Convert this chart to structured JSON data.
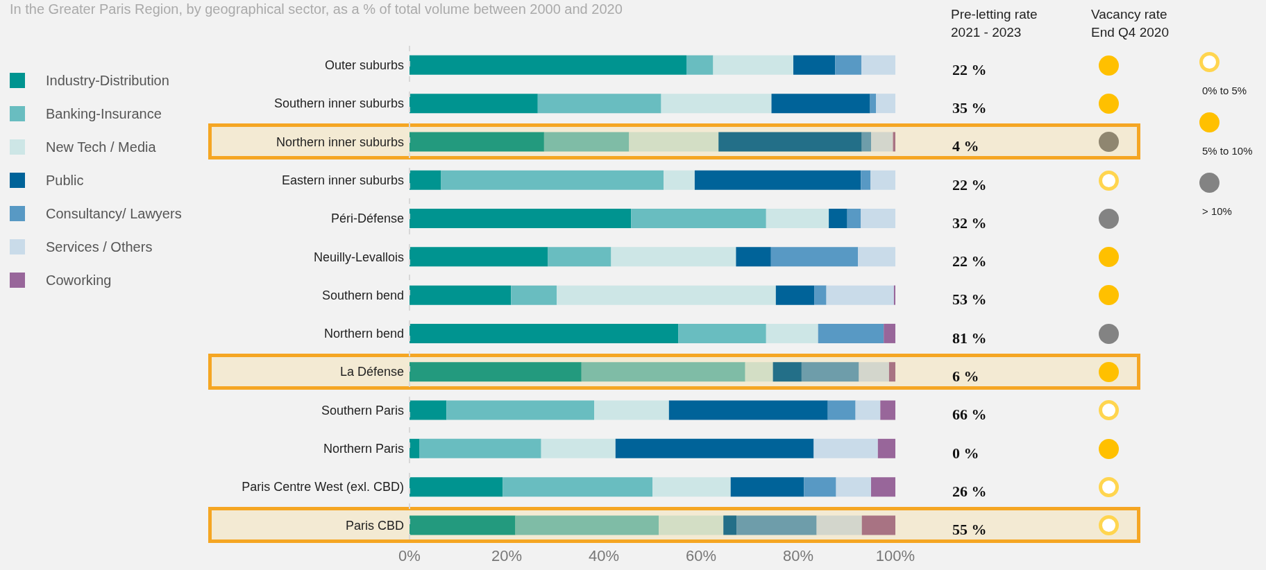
{
  "chart_data": [
    {
      "type": "bar",
      "orientation": "horizontal",
      "stacked": true,
      "subtitle": "In the Greater Paris Region, by geographical sector, as a % of total volume between 2000 and 2020",
      "categories": [
        "Outer suburbs",
        "Southern inner suburbs",
        "Northern inner suburbs",
        "Eastern inner suburbs",
        "Péri-Défense",
        "Neuilly-Levallois",
        "Southern bend",
        "Northern bend",
        "La Défense",
        "Southern Paris",
        "Northern Paris",
        "Paris Centre West (exl. CBD)",
        "Paris CBD"
      ],
      "series": [
        {
          "name": "Industry-Distribution",
          "color": "#009490",
          "colors": [
            "#009490",
            "#009490",
            "#239a7e",
            "#009490",
            "#009490",
            "#009490",
            "#009490",
            "#009490",
            "#239a7e",
            "#009490",
            "#009490",
            "#009490",
            "#239a7e"
          ],
          "values": [
            57,
            26.4,
            27.7,
            6.5,
            45.6,
            28.5,
            20.9,
            55.3,
            35.4,
            7.6,
            2,
            19.2,
            21.8
          ]
        },
        {
          "name": "Banking-Insurance",
          "color": "#69bdc0",
          "colors": [
            "#69bdc0",
            "#69bdc0",
            "#7fbca6",
            "#69bdc0",
            "#69bdc0",
            "#69bdc0",
            "#69bdc0",
            "#69bdc0",
            "#7fbca6",
            "#69bdc0",
            "#69bdc0",
            "#69bdc0",
            "#7fbca6"
          ],
          "values": [
            5.5,
            25.4,
            17.5,
            45.8,
            27.8,
            13,
            9.4,
            18.1,
            33.7,
            30.4,
            25.1,
            30.8,
            29.5
          ]
        },
        {
          "name": "New Tech / Media",
          "color": "#cde6e6",
          "colors": [
            "#cde6e6",
            "#cde6e6",
            "#d3dec5",
            "#cde6e6",
            "#cde6e6",
            "#cde6e6",
            "#cde6e6",
            "#cde6e6",
            "#d3dec5",
            "#cde6e6",
            "#cde6e6",
            "#cde6e6",
            "#d3dec5"
          ],
          "values": [
            16.5,
            22.7,
            18.4,
            6.4,
            12.9,
            25.7,
            45.1,
            10.7,
            5.7,
            15.4,
            15.3,
            16.1,
            13.3
          ]
        },
        {
          "name": "Public",
          "color": "#006399",
          "colors": [
            "#006399",
            "#006399",
            "#236f88",
            "#006399",
            "#006399",
            "#006399",
            "#006399",
            "#006399",
            "#236f88",
            "#006399",
            "#006399",
            "#006399",
            "#236f88"
          ],
          "values": [
            8.6,
            20.3,
            29.5,
            34.2,
            3.8,
            7.2,
            7.9,
            0,
            5.9,
            32.7,
            40.8,
            15.1,
            2.7
          ]
        },
        {
          "name": "Consultancy/ Lawyers",
          "color": "#5899c4",
          "colors": [
            "#5899c4",
            "#5899c4",
            "#6e9daa",
            "#5899c4",
            "#5899c4",
            "#5899c4",
            "#5899c4",
            "#5899c4",
            "#6e9daa",
            "#5899c4",
            "#5899c4",
            "#5899c4",
            "#6e9daa"
          ],
          "values": [
            5.4,
            1.2,
            1.9,
            2,
            2.8,
            17.9,
            2.5,
            13.5,
            11.8,
            5.7,
            0,
            6.6,
            16.5
          ]
        },
        {
          "name": "Services / Others",
          "color": "#c9dbe9",
          "colors": [
            "#c9dbe9",
            "#c9dbe9",
            "#d3d6cc",
            "#c9dbe9",
            "#c9dbe9",
            "#c9dbe9",
            "#c9dbe9",
            "#c9dbe9",
            "#d3d6cc",
            "#c9dbe9",
            "#c9dbe9",
            "#c9dbe9",
            "#d3d6cc"
          ],
          "values": [
            7,
            4,
            4.5,
            5.1,
            7.1,
            7.7,
            13.9,
            0,
            6.2,
            5.1,
            13.2,
            7.2,
            9.3
          ]
        },
        {
          "name": "Coworking",
          "color": "#98669a",
          "colors": [
            "#98669a",
            "#98669a",
            "#a87383",
            "#98669a",
            "#98669a",
            "#98669a",
            "#98669a",
            "#98669a",
            "#a87383",
            "#98669a",
            "#98669a",
            "#98669a",
            "#a87383"
          ],
          "values": [
            0,
            0,
            0.5,
            0,
            0,
            0,
            0.3,
            2.4,
            1.3,
            3.1,
            3.6,
            5,
            6.9
          ]
        }
      ],
      "xlim": [
        0,
        100
      ],
      "xticks": [
        {
          "value": 0,
          "label": "0%"
        },
        {
          "value": 20,
          "label": "20%"
        },
        {
          "value": 40,
          "label": "40%"
        },
        {
          "value": 60,
          "label": "60%"
        },
        {
          "value": 80,
          "label": "80%"
        },
        {
          "value": 100,
          "label": "100%"
        }
      ],
      "legend": "left",
      "bands": [
        {
          "axis": "y",
          "from": "Northern inner suburbs",
          "to": "Northern inner suburbs",
          "color": "#f5a623"
        },
        {
          "axis": "y",
          "from": "La Défense",
          "to": "La Défense",
          "color": "#f5a623"
        },
        {
          "axis": "y",
          "from": "Paris CBD",
          "to": "Paris CBD",
          "color": "#f5a623"
        }
      ],
      "annotations": [
        "Pre-letting rate 2021 - 2023",
        "22 %",
        "35 %",
        "4 %",
        "22 %",
        "32 %",
        "22 %",
        "53 %",
        "81 %",
        "6 %",
        "66 %",
        "0 %",
        "26 %",
        "55 %"
      ]
    },
    {
      "type": "other",
      "title": "Vacancy rate End Q4 2020",
      "colors": [
        "#ffc000",
        "#ffc000",
        "#8f8670",
        "#ffffff",
        "#838383",
        "#ffc000",
        "#ffc000",
        "#838383",
        "#ffc000",
        "#ffffff",
        "#ffc000",
        "#ffffff",
        "#ffffff"
      ],
      "annotations": [
        "0% to 5%",
        "5% to 10%",
        "> 10%"
      ]
    }
  ]
}
